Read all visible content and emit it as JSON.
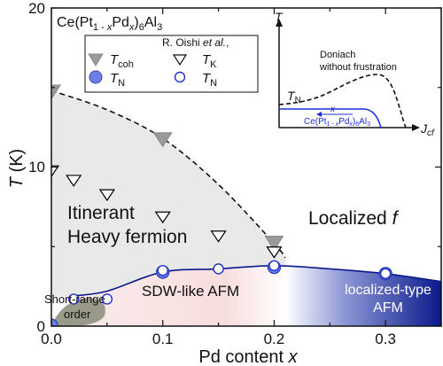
{
  "chart_data": {
    "type": "scatter",
    "title": "Ce(Pt1-xPdx)6Al3",
    "xlabel": "Pd content x",
    "ylabel": "T (K)",
    "xlim": [
      0,
      0.35
    ],
    "ylim": [
      0,
      20
    ],
    "x_ticks": [
      "0.0",
      "0.1",
      "0.2",
      "0.3"
    ],
    "y_ticks": [
      "0",
      "10",
      "20"
    ],
    "legend": {
      "header": "R. Oishi et al.,",
      "entries": {
        "tcoh": "Tcoh",
        "tk": "TK",
        "tn_filled": "TN",
        "tn_open": "TN"
      }
    },
    "series": [
      {
        "name": "Tcoh",
        "marker": "filled-triangle-down",
        "color": "#9a9a9a",
        "x": [
          0.0,
          0.1,
          0.2
        ],
        "y": [
          14.8,
          11.8,
          5.3
        ]
      },
      {
        "name": "TK",
        "marker": "open-triangle-down",
        "color": "#000000",
        "x": [
          0.0,
          0.02,
          0.05,
          0.1,
          0.15,
          0.2
        ],
        "y": [
          9.8,
          9.2,
          8.3,
          6.9,
          5.7,
          4.7
        ]
      },
      {
        "name": "TN",
        "marker": "filled-circle",
        "color": "#6b7fe6",
        "x": [
          0.0,
          0.1,
          0.2,
          0.3
        ],
        "y": [
          0.05,
          3.4,
          3.7,
          3.3
        ]
      },
      {
        "name": "TN",
        "marker": "open-circle",
        "color": "#2233cc",
        "x": [
          0.02,
          0.05,
          0.1,
          0.15,
          0.2,
          0.3
        ],
        "y": [
          1.7,
          1.7,
          3.5,
          3.6,
          3.8,
          3.3
        ]
      }
    ],
    "regions": {
      "itinerant_line1": "Itinerant",
      "itinerant_line2": "Heavy fermion",
      "localized": "Localized f",
      "sdw": "SDW-like AFM",
      "localized_afm_line1": "localized-type",
      "localized_afm_line2": "AFM",
      "short_range_line1": "Short-range",
      "short_range_line2": "order"
    },
    "inset": {
      "ylabel": "T",
      "xlabel": "Jcf",
      "doniach_line1": "Doniach",
      "doniach_line2": "without frustration",
      "tn_label": "TN",
      "x_arrow_label": "x",
      "compound_label": "Ce(Pt1-xPdx)6Al3"
    },
    "colors": {
      "blue": "#0a1a8c",
      "tcoh_gray": "#9a9a9a",
      "tn_fill": "#6b7fe6",
      "pink": "#f7d6d6",
      "short_range_fill": "#9a9a8a",
      "itinerant_fill": "#e9e9e9"
    }
  }
}
